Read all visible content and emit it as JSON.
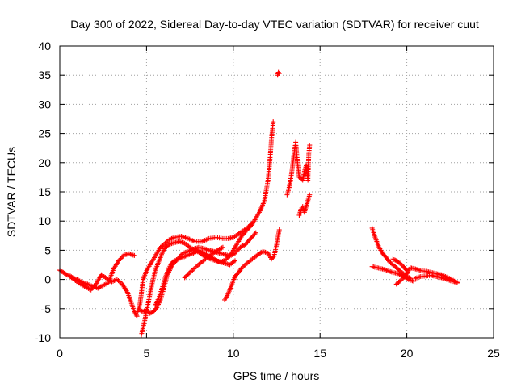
{
  "chart_data": {
    "type": "scatter",
    "title": "Day 300 of 2022, Sidereal Day-to-day VTEC variation (SDTVAR) for receiver cuut",
    "xlabel": "GPS time / hours",
    "ylabel": "SDTVAR / TECUs",
    "xlim": [
      0,
      25
    ],
    "ylim": [
      -10,
      40
    ],
    "xticks": [
      0,
      5,
      10,
      15,
      20,
      25
    ],
    "yticks": [
      -10,
      -5,
      0,
      5,
      10,
      15,
      20,
      25,
      30,
      35,
      40
    ],
    "xtick_labels": [
      "0",
      "5",
      "10",
      "15",
      "20",
      "25"
    ],
    "ytick_labels": [
      "-10",
      "-5",
      "0",
      "5",
      "10",
      "15",
      "20",
      "25",
      "30",
      "35",
      "40"
    ],
    "grid": true,
    "marker": "+",
    "color": "#ff0000",
    "series": [
      {
        "name": "s1",
        "x": [
          0.0,
          0.2,
          0.4,
          0.6,
          0.8,
          1.0,
          1.3,
          1.6,
          1.9,
          2.2,
          2.5,
          2.8,
          3.1,
          3.4,
          3.7,
          4.0,
          4.3
        ],
        "y": [
          1.6,
          1.2,
          0.8,
          0.6,
          0.2,
          0.0,
          -0.5,
          -0.8,
          -1.2,
          -1.5,
          -1.0,
          -0.6,
          1.8,
          3.2,
          4.2,
          4.4,
          4.1
        ]
      },
      {
        "name": "s2",
        "x": [
          0.6,
          0.9,
          1.2,
          1.5,
          1.8,
          2.1,
          2.4,
          2.7,
          3.0,
          3.3,
          3.6,
          3.9,
          4.1,
          4.3,
          4.45
        ],
        "y": [
          0.5,
          -0.2,
          -0.8,
          -1.3,
          -1.8,
          -0.7,
          0.8,
          0.2,
          -0.4,
          0.0,
          -0.8,
          -2.2,
          -3.8,
          -5.5,
          -6.3
        ]
      },
      {
        "name": "s3",
        "x": [
          4.5,
          4.6,
          4.7,
          4.8,
          5.0,
          5.2,
          5.4,
          5.6,
          5.8,
          6.0,
          6.3,
          6.6,
          7.0,
          7.4,
          7.8,
          8.2,
          8.6,
          9.0,
          9.4,
          9.7,
          10.0,
          10.4,
          10.8,
          11.2,
          11.5,
          11.8,
          12.0,
          12.1,
          12.2,
          12.3
        ],
        "y": [
          -5.5,
          -4.5,
          -2.5,
          0.0,
          1.5,
          2.5,
          3.5,
          4.5,
          5.5,
          6.0,
          6.8,
          7.2,
          7.4,
          7.0,
          6.5,
          6.5,
          7.0,
          7.2,
          7.0,
          7.0,
          7.2,
          8.0,
          8.8,
          10.0,
          11.5,
          13.5,
          17.0,
          20.0,
          24.0,
          27.0
        ]
      },
      {
        "name": "s4",
        "x": [
          4.7,
          4.9,
          5.1,
          5.3,
          5.5,
          5.7,
          5.9,
          6.1,
          6.3,
          6.6,
          6.9,
          7.2,
          7.5,
          7.8,
          8.1,
          8.4,
          8.7,
          9.0,
          9.3,
          9.6,
          9.9,
          10.2,
          10.5,
          10.8,
          11.1
        ],
        "y": [
          -9.5,
          -7.0,
          -4.0,
          -1.0,
          1.5,
          3.0,
          4.5,
          5.5,
          6.0,
          6.3,
          6.5,
          6.2,
          5.5,
          5.0,
          4.5,
          3.8,
          3.5,
          3.2,
          3.0,
          3.5,
          4.5,
          6.0,
          7.5,
          8.5,
          9.5
        ]
      },
      {
        "name": "s5",
        "x": [
          4.6,
          4.8,
          5.0,
          5.2,
          5.4,
          5.6,
          5.8,
          6.0,
          6.2,
          6.5,
          6.8,
          7.1,
          7.4,
          7.7,
          8.0,
          8.3,
          8.6,
          8.9,
          9.2,
          9.5,
          9.8,
          10.1,
          10.4,
          10.7,
          11.0,
          11.3
        ],
        "y": [
          -5.2,
          -5.5,
          -5.3,
          -5.8,
          -5.5,
          -4.8,
          -3.5,
          -1.5,
          0.8,
          2.5,
          3.5,
          4.5,
          4.8,
          5.2,
          5.5,
          5.3,
          5.0,
          4.8,
          4.5,
          4.3,
          4.0,
          4.5,
          5.5,
          6.0,
          7.0,
          8.0
        ]
      },
      {
        "name": "s6",
        "x": [
          5.5,
          5.7,
          5.9,
          6.1,
          6.3,
          6.5,
          6.8,
          7.1,
          7.4,
          7.7,
          8.0,
          8.3,
          8.6,
          8.9,
          9.2,
          9.5,
          9.8,
          10.1
        ],
        "y": [
          -4.5,
          -3.2,
          -1.5,
          0.5,
          2.0,
          3.0,
          3.5,
          3.8,
          4.2,
          4.5,
          5.0,
          4.5,
          4.0,
          3.5,
          3.0,
          2.8,
          2.5,
          3.2
        ]
      },
      {
        "name": "s7",
        "x": [
          7.2,
          7.5,
          7.8,
          8.1,
          8.4,
          8.7,
          9.0,
          9.2,
          9.4
        ],
        "y": [
          0.3,
          1.2,
          2.0,
          2.8,
          3.5,
          4.2,
          4.8,
          5.2,
          5.5
        ]
      },
      {
        "name": "s8",
        "x": [
          9.5,
          9.7,
          9.9,
          10.1,
          10.3,
          10.5,
          10.8,
          11.1,
          11.4,
          11.7,
          12.0,
          12.2,
          12.35,
          12.5,
          12.65
        ],
        "y": [
          -3.5,
          -2.5,
          -1.0,
          0.5,
          1.2,
          2.0,
          2.8,
          3.5,
          4.2,
          4.8,
          4.5,
          3.5,
          4.0,
          6.0,
          8.5
        ]
      },
      {
        "name": "s9",
        "x": [
          12.55,
          12.6,
          12.65
        ],
        "y": [
          35.0,
          35.5,
          35.3
        ]
      },
      {
        "name": "s10",
        "x": [
          13.1,
          13.2,
          13.3,
          13.4,
          13.5,
          13.6,
          13.7,
          13.8,
          14.0,
          14.1,
          14.2,
          14.3,
          14.35,
          14.4
        ],
        "y": [
          14.5,
          15.5,
          17.0,
          19.0,
          21.5,
          23.5,
          20.0,
          17.5,
          17.0,
          18.5,
          19.5,
          17.0,
          21.5,
          23.0
        ]
      },
      {
        "name": "s11",
        "x": [
          13.8,
          13.9,
          14.0,
          14.1,
          14.2,
          14.3,
          14.4
        ],
        "y": [
          11.0,
          12.0,
          12.5,
          11.5,
          12.5,
          13.5,
          14.5
        ]
      },
      {
        "name": "s12",
        "x": [
          18.0,
          18.2,
          18.4,
          18.6,
          18.8,
          19.0,
          19.2,
          19.4,
          19.6,
          19.8,
          20.0,
          20.2
        ],
        "y": [
          8.8,
          7.0,
          5.5,
          4.5,
          3.8,
          3.0,
          2.5,
          2.0,
          1.5,
          1.0,
          0.5,
          0.2
        ]
      },
      {
        "name": "s13",
        "x": [
          18.0,
          18.3,
          18.6,
          18.9,
          19.2,
          19.5,
          19.8,
          20.1,
          20.4
        ],
        "y": [
          2.2,
          2.0,
          1.8,
          1.5,
          1.2,
          1.0,
          0.5,
          0.0,
          -0.3
        ]
      },
      {
        "name": "s14",
        "x": [
          19.4,
          19.6,
          19.8,
          20.0,
          20.2,
          20.5,
          20.8,
          21.1,
          21.4,
          21.7,
          22.0,
          22.3,
          22.6,
          22.9
        ],
        "y": [
          -0.8,
          -0.3,
          0.3,
          1.0,
          2.0,
          1.8,
          1.5,
          1.4,
          1.2,
          1.0,
          0.8,
          0.4,
          0.0,
          -0.6
        ]
      },
      {
        "name": "s15",
        "x": [
          20.5,
          20.8,
          21.1,
          21.4,
          21.7,
          22.0,
          22.3,
          22.6,
          22.9
        ],
        "y": [
          0.2,
          0.5,
          0.6,
          0.7,
          0.5,
          0.3,
          0.0,
          -0.3,
          -0.5
        ]
      },
      {
        "name": "s16",
        "x": [
          19.2,
          19.4,
          19.6,
          19.8,
          20.0
        ],
        "y": [
          3.5,
          3.2,
          2.8,
          2.2,
          1.5
        ]
      }
    ]
  }
}
